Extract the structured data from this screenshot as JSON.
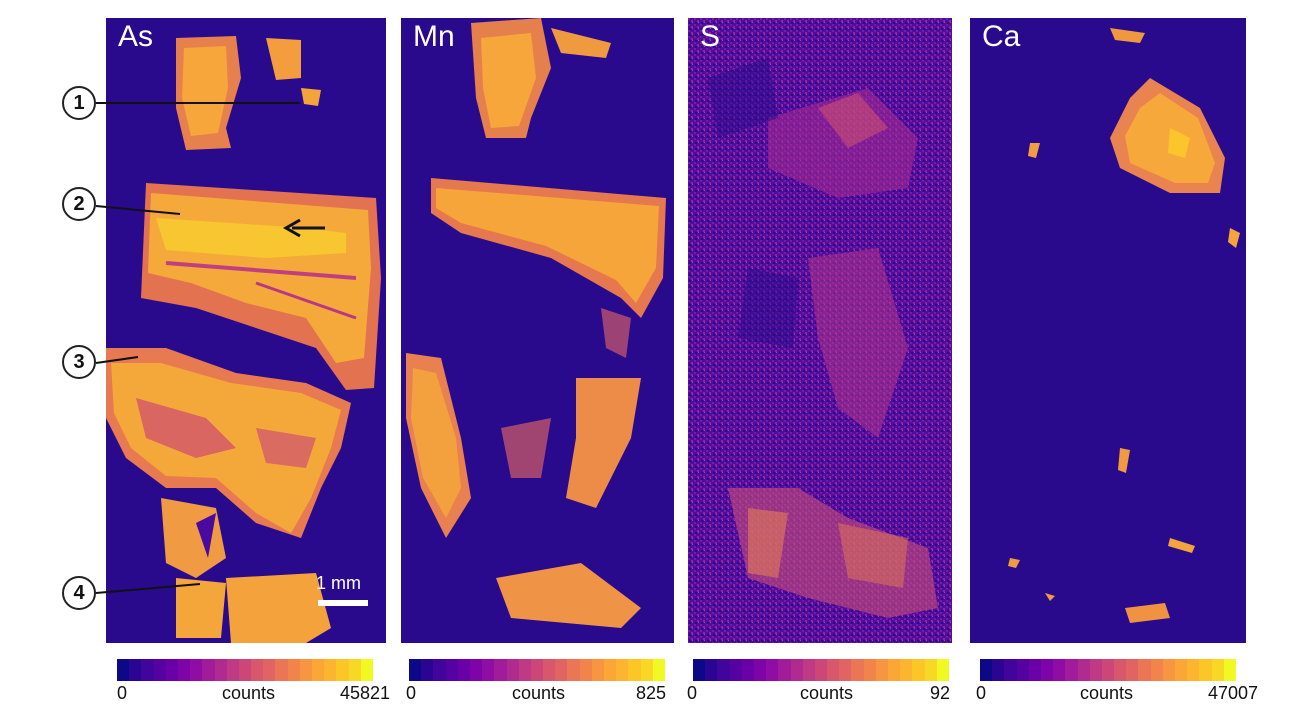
{
  "panels": [
    {
      "label": "As",
      "cbar_min": "0",
      "cbar_unit": "counts",
      "cbar_max": "45821"
    },
    {
      "label": "Mn",
      "cbar_min": "0",
      "cbar_unit": "counts",
      "cbar_max": "825"
    },
    {
      "label": "S",
      "cbar_min": "0",
      "cbar_unit": "counts",
      "cbar_max": "92"
    },
    {
      "label": "Ca",
      "cbar_min": "0",
      "cbar_unit": "counts",
      "cbar_max": "47007"
    }
  ],
  "callouts": [
    "1",
    "2",
    "3",
    "4"
  ],
  "scale_bar": "1 mm",
  "colors": {
    "background": "#2a0a8c",
    "colormap": [
      "#0d0887",
      "#2a0593",
      "#41049d",
      "#5601a4",
      "#6a00a8",
      "#7e03a8",
      "#8f0da4",
      "#a11b9b",
      "#b12a90",
      "#bf3984",
      "#cc4778",
      "#d8576b",
      "#e16462",
      "#eb7655",
      "#f2844b",
      "#f89540",
      "#fca636",
      "#fdb42f",
      "#fdc627",
      "#f8d824",
      "#f0f921"
    ],
    "high": "#f8b032",
    "mid": "#d9455f"
  }
}
